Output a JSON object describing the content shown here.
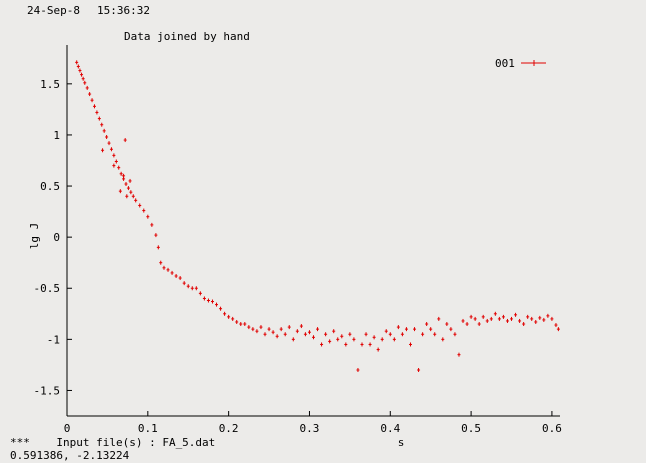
{
  "header": {
    "date": "24-Sep-8",
    "time": "15:36:32"
  },
  "chart_data": {
    "type": "scatter",
    "title": "Data joined by hand",
    "xlabel": "s",
    "ylabel": "lg J",
    "xlim": [
      0,
      0.61
    ],
    "ylim": [
      -1.75,
      1.88
    ],
    "x_ticks": [
      0,
      0.1,
      0.2,
      0.3,
      0.4,
      0.5,
      0.6
    ],
    "x_tick_labels": [
      "0",
      "0.1",
      "0.2",
      "0.3",
      "0.4",
      "0.5",
      "0.6"
    ],
    "y_ticks": [
      -1.5,
      -1,
      -0.5,
      0,
      0.5,
      1,
      1.5
    ],
    "y_tick_labels": [
      "-1.5",
      "-1",
      "-0.5",
      "0",
      "0.5",
      "1",
      "1.5"
    ],
    "grid": false,
    "legend_position": "top-right",
    "color": "#e00000",
    "series": [
      {
        "name": "001",
        "points": [
          [
            0.012,
            1.71
          ],
          [
            0.014,
            1.67
          ],
          [
            0.016,
            1.63
          ],
          [
            0.018,
            1.59
          ],
          [
            0.02,
            1.55
          ],
          [
            0.022,
            1.51
          ],
          [
            0.025,
            1.46
          ],
          [
            0.028,
            1.4
          ],
          [
            0.031,
            1.34
          ],
          [
            0.034,
            1.28
          ],
          [
            0.037,
            1.22
          ],
          [
            0.04,
            1.16
          ],
          [
            0.043,
            1.1
          ],
          [
            0.046,
            1.04
          ],
          [
            0.049,
            0.98
          ],
          [
            0.052,
            0.92
          ],
          [
            0.055,
            0.86
          ],
          [
            0.058,
            0.8
          ],
          [
            0.061,
            0.74
          ],
          [
            0.064,
            0.68
          ],
          [
            0.067,
            0.62
          ],
          [
            0.07,
            0.57
          ],
          [
            0.073,
            0.52
          ],
          [
            0.076,
            0.48
          ],
          [
            0.079,
            0.44
          ],
          [
            0.082,
            0.4
          ],
          [
            0.044,
            0.85
          ],
          [
            0.058,
            0.7
          ],
          [
            0.07,
            0.6
          ],
          [
            0.072,
            0.95
          ],
          [
            0.066,
            0.45
          ],
          [
            0.074,
            0.4
          ],
          [
            0.078,
            0.55
          ],
          [
            0.085,
            0.36
          ],
          [
            0.09,
            0.31
          ],
          [
            0.095,
            0.26
          ],
          [
            0.1,
            0.2
          ],
          [
            0.105,
            0.12
          ],
          [
            0.11,
            0.02
          ],
          [
            0.113,
            -0.1
          ],
          [
            0.116,
            -0.25
          ],
          [
            0.12,
            -0.3
          ],
          [
            0.125,
            -0.32
          ],
          [
            0.13,
            -0.35
          ],
          [
            0.135,
            -0.38
          ],
          [
            0.14,
            -0.4
          ],
          [
            0.145,
            -0.45
          ],
          [
            0.15,
            -0.48
          ],
          [
            0.155,
            -0.5
          ],
          [
            0.16,
            -0.5
          ],
          [
            0.165,
            -0.55
          ],
          [
            0.17,
            -0.6
          ],
          [
            0.175,
            -0.62
          ],
          [
            0.18,
            -0.63
          ],
          [
            0.185,
            -0.66
          ],
          [
            0.19,
            -0.7
          ],
          [
            0.195,
            -0.75
          ],
          [
            0.2,
            -0.78
          ],
          [
            0.205,
            -0.8
          ],
          [
            0.21,
            -0.83
          ],
          [
            0.215,
            -0.85
          ],
          [
            0.22,
            -0.85
          ],
          [
            0.225,
            -0.88
          ],
          [
            0.23,
            -0.9
          ],
          [
            0.235,
            -0.92
          ],
          [
            0.24,
            -0.88
          ],
          [
            0.245,
            -0.95
          ],
          [
            0.25,
            -0.9
          ],
          [
            0.255,
            -0.93
          ],
          [
            0.26,
            -0.97
          ],
          [
            0.265,
            -0.9
          ],
          [
            0.27,
            -0.95
          ],
          [
            0.275,
            -0.88
          ],
          [
            0.28,
            -1.0
          ],
          [
            0.285,
            -0.92
          ],
          [
            0.29,
            -0.87
          ],
          [
            0.295,
            -0.95
          ],
          [
            0.3,
            -0.93
          ],
          [
            0.305,
            -0.98
          ],
          [
            0.31,
            -0.9
          ],
          [
            0.315,
            -1.05
          ],
          [
            0.32,
            -0.95
          ],
          [
            0.325,
            -1.02
          ],
          [
            0.33,
            -0.92
          ],
          [
            0.335,
            -1.0
          ],
          [
            0.34,
            -0.97
          ],
          [
            0.345,
            -1.05
          ],
          [
            0.35,
            -0.95
          ],
          [
            0.355,
            -1.0
          ],
          [
            0.36,
            -1.3
          ],
          [
            0.365,
            -1.05
          ],
          [
            0.37,
            -0.95
          ],
          [
            0.375,
            -1.05
          ],
          [
            0.38,
            -0.98
          ],
          [
            0.385,
            -1.1
          ],
          [
            0.39,
            -1.0
          ],
          [
            0.395,
            -0.92
          ],
          [
            0.4,
            -0.95
          ],
          [
            0.405,
            -1.0
          ],
          [
            0.41,
            -0.88
          ],
          [
            0.415,
            -0.95
          ],
          [
            0.42,
            -0.9
          ],
          [
            0.425,
            -1.05
          ],
          [
            0.43,
            -0.9
          ],
          [
            0.435,
            -1.3
          ],
          [
            0.44,
            -0.95
          ],
          [
            0.445,
            -0.85
          ],
          [
            0.45,
            -0.9
          ],
          [
            0.455,
            -0.95
          ],
          [
            0.46,
            -0.8
          ],
          [
            0.465,
            -1.0
          ],
          [
            0.47,
            -0.85
          ],
          [
            0.475,
            -0.9
          ],
          [
            0.48,
            -0.95
          ],
          [
            0.485,
            -1.15
          ],
          [
            0.49,
            -0.82
          ],
          [
            0.495,
            -0.85
          ],
          [
            0.5,
            -0.78
          ],
          [
            0.505,
            -0.8
          ],
          [
            0.51,
            -0.85
          ],
          [
            0.515,
            -0.78
          ],
          [
            0.52,
            -0.82
          ],
          [
            0.525,
            -0.8
          ],
          [
            0.53,
            -0.75
          ],
          [
            0.535,
            -0.8
          ],
          [
            0.54,
            -0.78
          ],
          [
            0.545,
            -0.82
          ],
          [
            0.55,
            -0.8
          ],
          [
            0.555,
            -0.76
          ],
          [
            0.56,
            -0.82
          ],
          [
            0.565,
            -0.85
          ],
          [
            0.57,
            -0.78
          ],
          [
            0.575,
            -0.8
          ],
          [
            0.58,
            -0.83
          ],
          [
            0.585,
            -0.79
          ],
          [
            0.59,
            -0.81
          ],
          [
            0.595,
            -0.77
          ],
          [
            0.6,
            -0.8
          ],
          [
            0.605,
            -0.86
          ],
          [
            0.608,
            -0.9
          ]
        ]
      }
    ]
  },
  "footer": {
    "line1": "***    Input file(s) : FA_5.dat",
    "line2": "0.591386, -2.13224"
  }
}
